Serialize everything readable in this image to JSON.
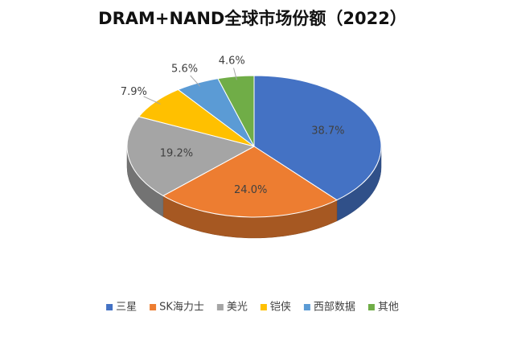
{
  "chart_data": {
    "type": "pie3d",
    "title": "DRAM+NAND全球市场份额（2022）",
    "categories": [
      "三星",
      "SK海力士",
      "美光",
      "铠侠",
      "西部数据",
      "其他"
    ],
    "values": [
      38.7,
      24.0,
      19.2,
      7.9,
      5.6,
      4.6
    ],
    "value_labels": [
      "38.7%",
      "24.0%",
      "19.2%",
      "7.9%",
      "5.6%",
      "4.6%"
    ],
    "colors": [
      "#4472c4",
      "#ed7d31",
      "#a5a5a5",
      "#ffc000",
      "#5b9bd5",
      "#70ad47"
    ],
    "legend": "bottom"
  }
}
